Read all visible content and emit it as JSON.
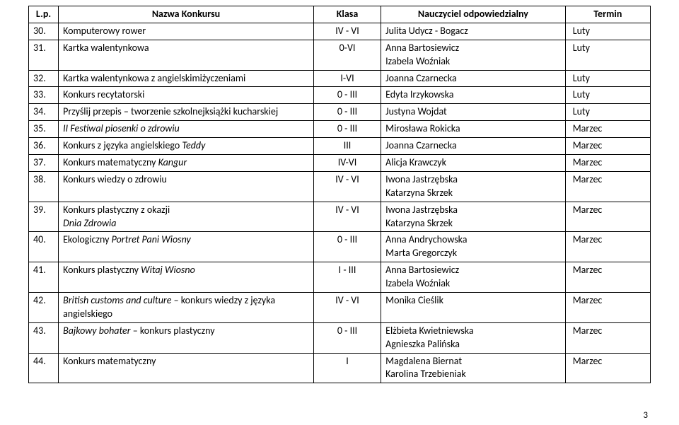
{
  "page_number": "3",
  "headers": {
    "lp": "L.p.",
    "name": "Nazwa Konkursu",
    "klasa": "Klasa",
    "teacher": "Nauczyciel odpowiedzialny",
    "termin": "Termin"
  },
  "rows": [
    {
      "lp": "30.",
      "name_pre": "Komputerowy rower",
      "name_it": "",
      "name_post": "",
      "klasa": "IV - VI",
      "teachers": [
        "Julita Udycz - Bogacz"
      ],
      "termin": "Luty"
    },
    {
      "lp": "31.",
      "name_pre": "Kartka walentynkowa",
      "name_it": "",
      "name_post": "",
      "klasa": "0-VI",
      "teachers": [
        "Anna Bartosiewicz",
        "Izabela Woźniak"
      ],
      "termin": "Luty"
    },
    {
      "lp": "32.",
      "name_pre": "Kartka walentynkowa z angielskimi",
      "name_it": "",
      "name_post": "życzeniami",
      "klasa": "I-VI",
      "teachers": [
        "Joanna Czarnecka"
      ],
      "termin": "Luty"
    },
    {
      "lp": "33.",
      "name_pre": "Konkurs recytatorski",
      "name_it": "",
      "name_post": "",
      "klasa": "0 - III",
      "teachers": [
        "Edyta Irzykowska"
      ],
      "termin": "Luty"
    },
    {
      "lp": "34.",
      "name_pre": "Przyślij przepis – tworzenie szkolnej",
      "name_it": "",
      "name_post": "książki kucharskiej",
      "klasa": "0 - III",
      "teachers": [
        "Justyna Wojdat"
      ],
      "termin": "Luty"
    },
    {
      "lp": "35.",
      "name_pre": "",
      "name_it": "II Festiwal piosenki o zdrowiu",
      "name_post": "",
      "klasa": "0 - III",
      "teachers": [
        "Mirosława Rokicka"
      ],
      "termin": "Marzec"
    },
    {
      "lp": "36.",
      "name_pre": "Konkurs z języka angielskiego ",
      "name_it": "Teddy",
      "name_post": "",
      "klasa": "III",
      "teachers": [
        "Joanna Czarnecka"
      ],
      "termin": "Marzec"
    },
    {
      "lp": "37.",
      "name_pre": "Konkurs matematyczny ",
      "name_it": "Kangur",
      "name_post": "",
      "klasa": "IV-VI",
      "teachers": [
        "Alicja Krawczyk"
      ],
      "termin": "Marzec"
    },
    {
      "lp": "38.",
      "name_pre": "Konkurs wiedzy o zdrowiu",
      "name_it": "",
      "name_post": "",
      "klasa": "IV - VI",
      "teachers": [
        "Iwona Jastrzębska",
        "Katarzyna Skrzek"
      ],
      "termin": "Marzec"
    },
    {
      "lp": "39.",
      "name_pre": "Konkurs plastyczny z okazji",
      "name_it": "Dnia Zdrowia",
      "name_post": "",
      "name_multiline": true,
      "klasa": "IV - VI",
      "teachers": [
        "Iwona Jastrzębska",
        "Katarzyna Skrzek"
      ],
      "termin": "Marzec"
    },
    {
      "lp": "40.",
      "name_pre": "Ekologiczny ",
      "name_it": "Portret Pani Wiosny",
      "name_post": "",
      "klasa": "0 - III",
      "teachers": [
        "Anna Andrychowska",
        "Marta Gregorczyk"
      ],
      "termin": "Marzec"
    },
    {
      "lp": "41.",
      "name_pre": "Konkurs plastyczny ",
      "name_it": "Witaj Wiosno",
      "name_post": "",
      "klasa": "I - III",
      "teachers": [
        "Anna Bartosiewicz",
        "Izabela Woźniak"
      ],
      "termin": "Marzec"
    },
    {
      "lp": "42.",
      "name_pre": "",
      "name_it": "British customs and culture",
      "name_post": " – konkurs wiedzy z języka angielskiego",
      "klasa": "IV - VI",
      "teachers": [
        "Monika Cieślik"
      ],
      "termin": "Marzec"
    },
    {
      "lp": "43.",
      "name_pre": "",
      "name_it": "Bajkowy bohater",
      "name_post": " – konkurs plastyczny",
      "klasa": "0 -  III",
      "teachers": [
        "Elżbieta Kwietniewska",
        "Agnieszka Palińska"
      ],
      "termin": "Marzec"
    },
    {
      "lp": "44.",
      "name_pre": "Konkurs matematyczny",
      "name_it": "",
      "name_post": "",
      "klasa": "I",
      "teachers": [
        "Magdalena Biernat",
        "Karolina Trzebieniak"
      ],
      "termin": "Marzec"
    }
  ]
}
